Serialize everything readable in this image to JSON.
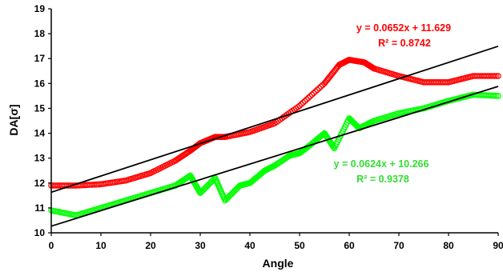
{
  "chart_data": {
    "type": "scatter",
    "xlabel": "Angle",
    "ylabel": "DA[σ]",
    "xlim": [
      0,
      90
    ],
    "ylim": [
      10,
      19
    ],
    "x_ticks": [
      "0",
      "10",
      "20",
      "30",
      "40",
      "50",
      "60",
      "70",
      "80",
      "90"
    ],
    "y_ticks": [
      "10",
      "11",
      "12",
      "13",
      "14",
      "15",
      "16",
      "17",
      "18",
      "19"
    ],
    "grid": false,
    "series": [
      {
        "marker": "circle",
        "color": "#ff0000",
        "trendline": {
          "slope": 0.0652,
          "intercept": 11.629,
          "equation": "y = 0.0652x + 11.629",
          "r2": "R² = 0.8742",
          "color": "#000000"
        },
        "points": [
          [
            0,
            11.9
          ],
          [
            5,
            11.9
          ],
          [
            10,
            11.95
          ],
          [
            15,
            12.1
          ],
          [
            20,
            12.4
          ],
          [
            25,
            12.9
          ],
          [
            28,
            13.3
          ],
          [
            30,
            13.6
          ],
          [
            33,
            13.85
          ],
          [
            35,
            13.85
          ],
          [
            40,
            14.05
          ],
          [
            45,
            14.4
          ],
          [
            50,
            15.1
          ],
          [
            55,
            16.0
          ],
          [
            58,
            16.75
          ],
          [
            60,
            16.95
          ],
          [
            63,
            16.85
          ],
          [
            65,
            16.6
          ],
          [
            70,
            16.3
          ],
          [
            75,
            16.05
          ],
          [
            80,
            16.05
          ],
          [
            85,
            16.3
          ],
          [
            90,
            16.3
          ]
        ]
      },
      {
        "marker": "circle",
        "color": "#00ff00",
        "trendline": {
          "slope": 0.0624,
          "intercept": 10.266,
          "equation": "y = 0.0624x + 10.266",
          "r2": "R² = 0.9378",
          "color": "#000000"
        },
        "points": [
          [
            0,
            10.9
          ],
          [
            5,
            10.7
          ],
          [
            10,
            11.0
          ],
          [
            15,
            11.3
          ],
          [
            20,
            11.6
          ],
          [
            25,
            11.9
          ],
          [
            28,
            12.3
          ],
          [
            30,
            11.6
          ],
          [
            33,
            12.2
          ],
          [
            35,
            11.3
          ],
          [
            38,
            11.9
          ],
          [
            40,
            12.0
          ],
          [
            43,
            12.5
          ],
          [
            45,
            12.7
          ],
          [
            48,
            13.1
          ],
          [
            50,
            13.2
          ],
          [
            52,
            13.5
          ],
          [
            55,
            14.0
          ],
          [
            57,
            13.4
          ],
          [
            60,
            14.6
          ],
          [
            62,
            14.2
          ],
          [
            65,
            14.5
          ],
          [
            70,
            14.8
          ],
          [
            75,
            15.0
          ],
          [
            80,
            15.3
          ],
          [
            85,
            15.55
          ],
          [
            90,
            15.5
          ]
        ]
      }
    ]
  }
}
